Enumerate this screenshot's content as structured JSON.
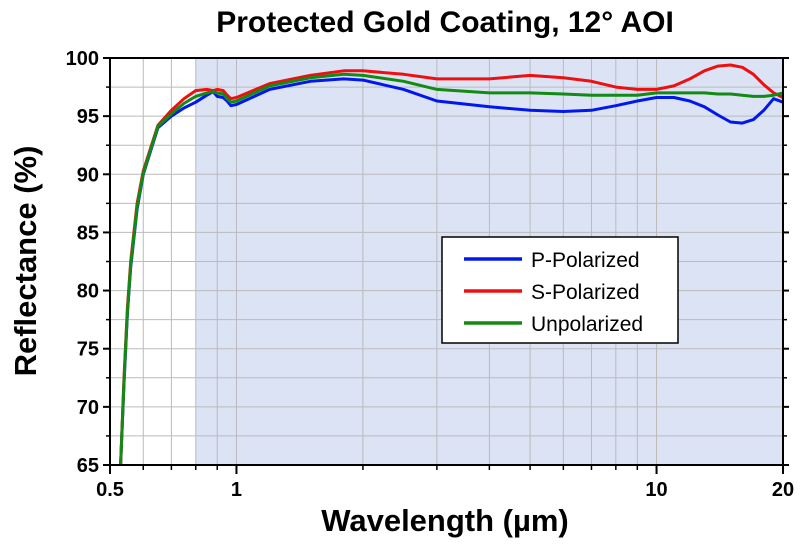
{
  "chart_data": {
    "type": "line",
    "title": "Protected Gold Coating, 12° AOI",
    "xlabel": "Wavelength (µm)",
    "ylabel": "Reflectance (%)",
    "xscale": "log",
    "xlim": [
      0.5,
      20
    ],
    "ylim": [
      65,
      100
    ],
    "xticks": [
      {
        "value": 0.5,
        "label": "0.5"
      },
      {
        "value": 1,
        "label": "1"
      },
      {
        "value": 10,
        "label": "10"
      },
      {
        "value": 20,
        "label": "20"
      }
    ],
    "yticks": [
      {
        "value": 65,
        "label": "65"
      },
      {
        "value": 70,
        "label": "70"
      },
      {
        "value": 75,
        "label": "75"
      },
      {
        "value": 80,
        "label": "80"
      },
      {
        "value": 85,
        "label": "85"
      },
      {
        "value": 90,
        "label": "90"
      },
      {
        "value": 95,
        "label": "95"
      },
      {
        "value": 100,
        "label": "100"
      }
    ],
    "grid": true,
    "shaded_region": {
      "x": [
        0.8,
        20
      ],
      "color": "#dbe3f5"
    },
    "legend_position": "center-right",
    "series": [
      {
        "name": "P-Polarized",
        "color": "#0018ee",
        "x": [
          0.53,
          0.54,
          0.55,
          0.56,
          0.58,
          0.6,
          0.65,
          0.7,
          0.75,
          0.8,
          0.85,
          0.88,
          0.9,
          0.93,
          0.95,
          0.97,
          1.0,
          1.2,
          1.5,
          1.8,
          2.0,
          2.5,
          3.0,
          4.0,
          5.0,
          6.0,
          7.0,
          8.0,
          9.0,
          10.0,
          11.0,
          12.0,
          13.0,
          14.0,
          15.0,
          16.0,
          17.0,
          18.0,
          19.0,
          20.0
        ],
        "y": [
          65,
          72,
          78,
          82,
          87,
          90,
          94,
          95,
          95.7,
          96.2,
          96.8,
          97.1,
          96.7,
          96.6,
          96.3,
          95.9,
          96.0,
          97.3,
          98.0,
          98.2,
          98.1,
          97.3,
          96.3,
          95.8,
          95.5,
          95.4,
          95.5,
          95.9,
          96.3,
          96.6,
          96.6,
          96.3,
          95.8,
          95.1,
          94.5,
          94.4,
          94.7,
          95.5,
          96.5,
          96.2
        ]
      },
      {
        "name": "S-Polarized",
        "color": "#ee1010",
        "x": [
          0.53,
          0.54,
          0.55,
          0.56,
          0.58,
          0.6,
          0.65,
          0.7,
          0.75,
          0.8,
          0.85,
          0.88,
          0.9,
          0.93,
          0.95,
          0.97,
          1.0,
          1.2,
          1.5,
          1.8,
          2.0,
          2.5,
          3.0,
          4.0,
          5.0,
          6.0,
          7.0,
          8.0,
          9.0,
          10.0,
          11.0,
          12.0,
          13.0,
          14.0,
          15.0,
          16.0,
          17.0,
          18.0,
          19.0,
          20.0
        ],
        "y": [
          65,
          72.5,
          78.5,
          82.5,
          87.5,
          90.3,
          94.2,
          95.5,
          96.5,
          97.2,
          97.3,
          97.2,
          97.3,
          97.2,
          96.8,
          96.5,
          96.6,
          97.8,
          98.5,
          98.9,
          98.9,
          98.6,
          98.2,
          98.2,
          98.5,
          98.3,
          98.0,
          97.5,
          97.3,
          97.3,
          97.6,
          98.2,
          98.9,
          99.3,
          99.4,
          99.2,
          98.6,
          97.7,
          97.0,
          96.6
        ]
      },
      {
        "name": "Unpolarized",
        "color": "#138a13",
        "x": [
          0.53,
          0.54,
          0.55,
          0.56,
          0.58,
          0.6,
          0.65,
          0.7,
          0.75,
          0.8,
          0.85,
          0.88,
          0.9,
          0.93,
          0.95,
          0.97,
          1.0,
          1.2,
          1.5,
          1.8,
          2.0,
          2.5,
          3.0,
          4.0,
          5.0,
          6.0,
          7.0,
          8.0,
          9.0,
          10.0,
          11.0,
          12.0,
          13.0,
          14.0,
          15.0,
          16.0,
          17.0,
          18.0,
          19.0,
          20.0
        ],
        "y": [
          65,
          72.2,
          78.2,
          82.2,
          87.2,
          90.1,
          94.1,
          95.2,
          96.1,
          96.7,
          97.0,
          97.1,
          97.0,
          96.9,
          96.5,
          96.2,
          96.3,
          97.6,
          98.3,
          98.6,
          98.5,
          98.0,
          97.3,
          97.0,
          97.0,
          96.9,
          96.8,
          96.8,
          96.8,
          97.0,
          97.0,
          97.0,
          97.0,
          96.9,
          96.9,
          96.8,
          96.7,
          96.7,
          96.8,
          97.0
        ]
      }
    ]
  }
}
